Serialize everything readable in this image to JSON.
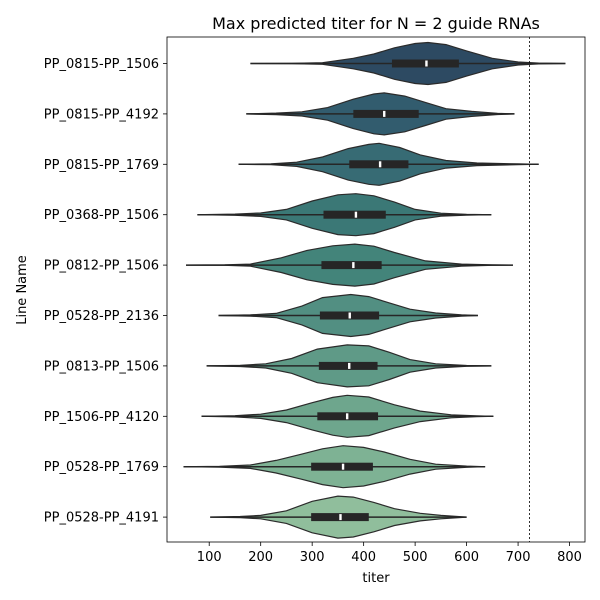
{
  "chart_data": {
    "type": "violin",
    "orientation": "horizontal",
    "title": "Max predicted titer for N = 2 guide RNAs",
    "xlabel": "titer",
    "ylabel": "Line Name",
    "xlim": [
      18,
      830
    ],
    "xticks": [
      100,
      200,
      300,
      400,
      500,
      600,
      700,
      800
    ],
    "reference_line": {
      "x": 722,
      "style": "dashed",
      "color": "#000000"
    },
    "grid": false,
    "categories": [
      "PP_0815-PP_1506",
      "PP_0815-PP_4192",
      "PP_0815-PP_1769",
      "PP_0368-PP_1506",
      "PP_0812-PP_1506",
      "PP_0528-PP_2136",
      "PP_0813-PP_1506",
      "PP_1506-PP_4120",
      "PP_0528-PP_1769",
      "PP_0528-PP_4191"
    ],
    "colors": [
      "#2d4a62",
      "#325c6e",
      "#376b74",
      "#3b7876",
      "#43847a",
      "#528f82",
      "#5f9a87",
      "#6ea68d",
      "#7eb294",
      "#90be9c"
    ],
    "violins": [
      {
        "min": 180,
        "max": 792,
        "q1": 455,
        "median": 522,
        "q3": 585,
        "peak": 525,
        "profile": [
          [
            180,
            0.0
          ],
          [
            260,
            0.01
          ],
          [
            320,
            0.04
          ],
          [
            380,
            0.25
          ],
          [
            420,
            0.45
          ],
          [
            460,
            0.75
          ],
          [
            500,
            0.95
          ],
          [
            525,
            1.0
          ],
          [
            560,
            0.9
          ],
          [
            600,
            0.6
          ],
          [
            650,
            0.25
          ],
          [
            700,
            0.07
          ],
          [
            740,
            0.02
          ],
          [
            792,
            0.0
          ]
        ]
      },
      {
        "min": 172,
        "max": 693,
        "q1": 380,
        "median": 440,
        "q3": 507,
        "peak": 440,
        "profile": [
          [
            172,
            0.0
          ],
          [
            230,
            0.04
          ],
          [
            280,
            0.1
          ],
          [
            330,
            0.3
          ],
          [
            380,
            0.7
          ],
          [
            420,
            0.95
          ],
          [
            440,
            1.0
          ],
          [
            480,
            0.85
          ],
          [
            520,
            0.55
          ],
          [
            560,
            0.25
          ],
          [
            610,
            0.12
          ],
          [
            660,
            0.03
          ],
          [
            693,
            0.0
          ]
        ]
      },
      {
        "min": 157,
        "max": 740,
        "q1": 372,
        "median": 432,
        "q3": 487,
        "peak": 430,
        "profile": [
          [
            157,
            0.0
          ],
          [
            220,
            0.02
          ],
          [
            270,
            0.1
          ],
          [
            320,
            0.35
          ],
          [
            370,
            0.75
          ],
          [
            410,
            0.95
          ],
          [
            430,
            1.0
          ],
          [
            470,
            0.8
          ],
          [
            510,
            0.45
          ],
          [
            560,
            0.18
          ],
          [
            620,
            0.06
          ],
          [
            700,
            0.02
          ],
          [
            740,
            0.0
          ]
        ]
      },
      {
        "min": 77,
        "max": 648,
        "q1": 322,
        "median": 385,
        "q3": 443,
        "peak": 385,
        "profile": [
          [
            77,
            0.0
          ],
          [
            150,
            0.03
          ],
          [
            200,
            0.08
          ],
          [
            250,
            0.25
          ],
          [
            300,
            0.65
          ],
          [
            350,
            0.95
          ],
          [
            385,
            1.0
          ],
          [
            420,
            0.9
          ],
          [
            460,
            0.6
          ],
          [
            500,
            0.25
          ],
          [
            550,
            0.07
          ],
          [
            600,
            0.02
          ],
          [
            648,
            0.0
          ]
        ]
      },
      {
        "min": 55,
        "max": 690,
        "q1": 318,
        "median": 380,
        "q3": 435,
        "peak": 383,
        "profile": [
          [
            55,
            0.0
          ],
          [
            130,
            0.01
          ],
          [
            180,
            0.05
          ],
          [
            240,
            0.35
          ],
          [
            290,
            0.7
          ],
          [
            340,
            0.92
          ],
          [
            383,
            1.0
          ],
          [
            420,
            0.9
          ],
          [
            460,
            0.6
          ],
          [
            520,
            0.2
          ],
          [
            590,
            0.05
          ],
          [
            650,
            0.01
          ],
          [
            690,
            0.0
          ]
        ]
      },
      {
        "min": 118,
        "max": 622,
        "q1": 315,
        "median": 373,
        "q3": 430,
        "peak": 375,
        "profile": [
          [
            118,
            0.0
          ],
          [
            180,
            0.03
          ],
          [
            230,
            0.1
          ],
          [
            280,
            0.45
          ],
          [
            320,
            0.85
          ],
          [
            375,
            1.0
          ],
          [
            410,
            0.9
          ],
          [
            450,
            0.6
          ],
          [
            490,
            0.3
          ],
          [
            540,
            0.12
          ],
          [
            590,
            0.03
          ],
          [
            622,
            0.0
          ]
        ]
      },
      {
        "min": 95,
        "max": 648,
        "q1": 313,
        "median": 372,
        "q3": 427,
        "peak": 368,
        "profile": [
          [
            95,
            0.0
          ],
          [
            160,
            0.03
          ],
          [
            210,
            0.1
          ],
          [
            260,
            0.35
          ],
          [
            310,
            0.8
          ],
          [
            368,
            1.0
          ],
          [
            410,
            0.95
          ],
          [
            450,
            0.65
          ],
          [
            490,
            0.3
          ],
          [
            540,
            0.1
          ],
          [
            600,
            0.02
          ],
          [
            648,
            0.0
          ]
        ]
      },
      {
        "min": 85,
        "max": 652,
        "q1": 310,
        "median": 368,
        "q3": 428,
        "peak": 368,
        "profile": [
          [
            85,
            0.0
          ],
          [
            150,
            0.03
          ],
          [
            200,
            0.1
          ],
          [
            250,
            0.3
          ],
          [
            300,
            0.65
          ],
          [
            340,
            0.9
          ],
          [
            368,
            1.0
          ],
          [
            410,
            0.92
          ],
          [
            460,
            0.55
          ],
          [
            510,
            0.25
          ],
          [
            570,
            0.07
          ],
          [
            620,
            0.02
          ],
          [
            652,
            0.0
          ]
        ]
      },
      {
        "min": 50,
        "max": 636,
        "q1": 298,
        "median": 360,
        "q3": 418,
        "peak": 360,
        "profile": [
          [
            50,
            0.0
          ],
          [
            120,
            0.02
          ],
          [
            180,
            0.08
          ],
          [
            230,
            0.3
          ],
          [
            280,
            0.6
          ],
          [
            320,
            0.85
          ],
          [
            360,
            1.0
          ],
          [
            400,
            0.92
          ],
          [
            440,
            0.7
          ],
          [
            490,
            0.35
          ],
          [
            540,
            0.12
          ],
          [
            600,
            0.03
          ],
          [
            636,
            0.0
          ]
        ]
      },
      {
        "min": 102,
        "max": 600,
        "q1": 298,
        "median": 355,
        "q3": 410,
        "peak": 350,
        "profile": [
          [
            102,
            0.0
          ],
          [
            160,
            0.03
          ],
          [
            200,
            0.08
          ],
          [
            250,
            0.3
          ],
          [
            300,
            0.75
          ],
          [
            350,
            1.0
          ],
          [
            380,
            0.95
          ],
          [
            420,
            0.7
          ],
          [
            460,
            0.4
          ],
          [
            510,
            0.18
          ],
          [
            550,
            0.08
          ],
          [
            600,
            0.0
          ]
        ]
      }
    ]
  }
}
